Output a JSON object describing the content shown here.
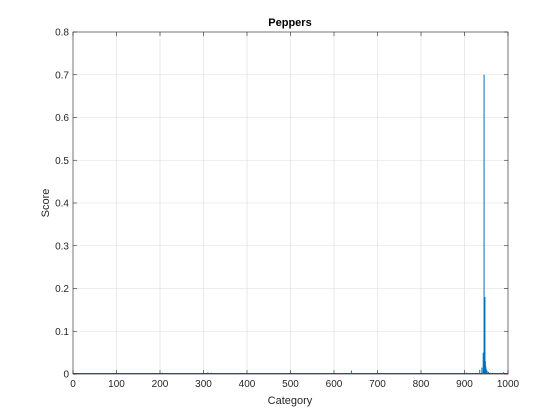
{
  "chart_data": {
    "type": "bar",
    "title": "Peppers",
    "xlabel": "Category",
    "ylabel": "Score",
    "xlim": [
      0,
      1000
    ],
    "ylim": [
      0,
      0.8
    ],
    "xticks": [
      0,
      100,
      200,
      300,
      400,
      500,
      600,
      700,
      800,
      900,
      1000
    ],
    "yticks": [
      0,
      0.1,
      0.2,
      0.3,
      0.4,
      0.5,
      0.6,
      0.7,
      0.8
    ],
    "grid": true,
    "bar_color": "#0072BD",
    "x": [
      20,
      100,
      205,
      310,
      318,
      400,
      500,
      560,
      640,
      700,
      860,
      905,
      935,
      940,
      943,
      944,
      945,
      946,
      947,
      948,
      949,
      950,
      952,
      955,
      960,
      990
    ],
    "values": [
      0.002,
      0.002,
      0.003,
      0.004,
      0.003,
      0.002,
      0.002,
      0.002,
      0.008,
      0.002,
      0.002,
      0.003,
      0.01,
      0.015,
      0.05,
      0.03,
      0.7,
      0.04,
      0.18,
      0.03,
      0.018,
      0.012,
      0.008,
      0.005,
      0.003,
      0.004
    ]
  }
}
